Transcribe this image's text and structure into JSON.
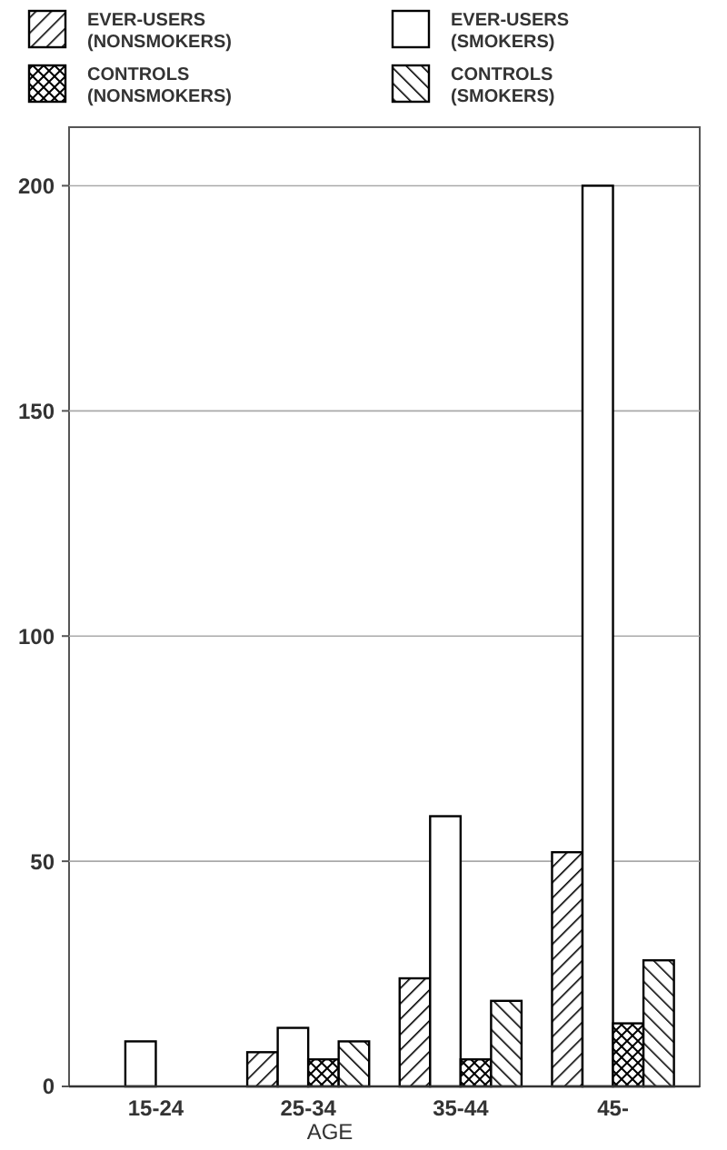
{
  "chart_data": {
    "type": "bar",
    "xlabel": "AGE",
    "categories": [
      "15-24",
      "25-34",
      "35-44",
      "45-"
    ],
    "series": [
      {
        "name": "EVER-USERS (NONSMOKERS)",
        "color": "#000000",
        "values": [
          null,
          7.6,
          24,
          52
        ]
      },
      {
        "name": "EVER-USERS (SMOKERS)",
        "color": "#000000",
        "values": [
          10,
          13,
          60,
          200
        ]
      },
      {
        "name": "CONTROLS (NONSMOKERS)",
        "color": "#000000",
        "values": [
          null,
          6,
          6,
          14
        ]
      },
      {
        "name": "CONTROLS (SMOKERS)",
        "color": "#000000",
        "values": [
          null,
          10,
          19,
          28
        ]
      }
    ],
    "ylim": [
      0,
      213
    ],
    "yticks": [
      0,
      50,
      100,
      150,
      200
    ],
    "grid": "y",
    "legend": "top"
  }
}
